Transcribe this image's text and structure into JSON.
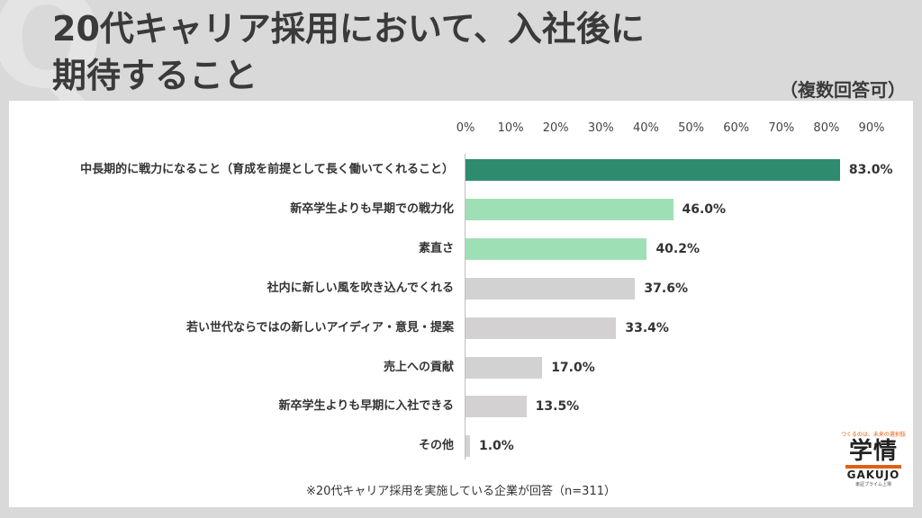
{
  "header": {
    "title_line1": "20代キャリア採用において、入社後に",
    "title_line2": "期待すること",
    "multi_answer_note": "（複数回答可）",
    "deco_glyph": "Q"
  },
  "chart_data": {
    "type": "bar",
    "orientation": "horizontal",
    "categories": [
      "中長期的に戦力になること（育成を前提として長く働いてくれること）",
      "新卒学生よりも早期での戦力化",
      "素直さ",
      "社内に新しい風を吹き込んでくれる",
      "若い世代ならではの新しいアイディア・意見・提案",
      "売上への貢献",
      "新卒学生よりも早期に入社できる",
      "その他"
    ],
    "values": [
      83.0,
      46.0,
      40.2,
      37.6,
      33.4,
      17.0,
      13.5,
      1.0
    ],
    "value_labels": [
      "83.0%",
      "46.0%",
      "40.2%",
      "37.6%",
      "33.4%",
      "17.0%",
      "13.5%",
      "1.0%"
    ],
    "bar_colors": [
      "#2e8b6d",
      "#9fdfb6",
      "#9fdfb6",
      "#d3d1d1",
      "#d3d1d1",
      "#d3d1d1",
      "#d3d1d1",
      "#d3d1d1"
    ],
    "xlim": [
      0,
      90
    ],
    "xticks": [
      "0%",
      "10%",
      "20%",
      "30%",
      "40%",
      "50%",
      "60%",
      "70%",
      "80%",
      "90%"
    ],
    "grid": false,
    "legend": "none"
  },
  "footnote": "※20代キャリア採用を実施している企業が回答（n=311）",
  "logo": {
    "tagline": "つくるのは、未来の選択肢",
    "name_jp": "学情",
    "name_en": "GAKUJO",
    "sub": "東証プライム上場",
    "accent": "#e06010"
  }
}
